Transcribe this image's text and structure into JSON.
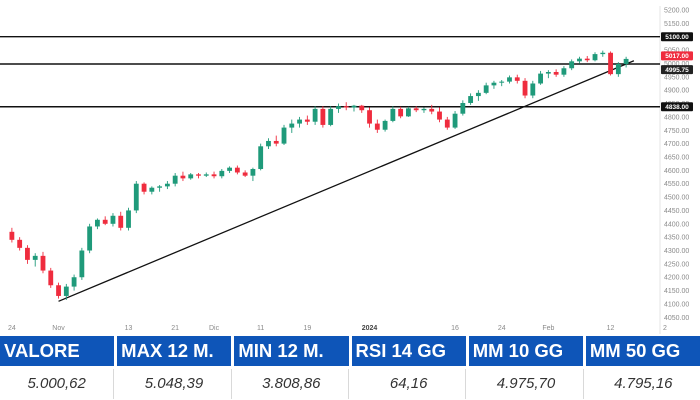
{
  "chart_data": {
    "type": "candlestick",
    "y_axis": {
      "position": "right",
      "ticks": [
        "5200.00",
        "5150.00",
        "5100.00",
        "5050.00",
        "5000.00",
        "4950.00",
        "4900.00",
        "4850.00",
        "4800.00",
        "4750.00",
        "4700.00",
        "4650.00",
        "4600.00",
        "4550.00",
        "4500.00",
        "4450.00",
        "4400.00",
        "4350.00",
        "4300.00",
        "4250.00",
        "4200.00",
        "4150.00",
        "4100.00",
        "4050.00"
      ],
      "ylim": [
        4040,
        5215
      ]
    },
    "x_axis": {
      "ticks": [
        {
          "label": "24",
          "i": 0
        },
        {
          "label": "Nov",
          "i": 6
        },
        {
          "label": "13",
          "i": 15
        },
        {
          "label": "21",
          "i": 21
        },
        {
          "label": "Dic",
          "i": 26
        },
        {
          "label": "11",
          "i": 32
        },
        {
          "label": "19",
          "i": 38
        },
        {
          "label": "2024",
          "i": 46,
          "bold": true
        },
        {
          "label": "16",
          "i": 57
        },
        {
          "label": "24",
          "i": 63
        },
        {
          "label": "Feb",
          "i": 69
        },
        {
          "label": "12",
          "i": 77
        },
        {
          "label": "2",
          "i": 84
        }
      ]
    },
    "horizontal_lines": [
      {
        "value": 5100,
        "label": "5100.00"
      },
      {
        "value": 4998,
        "label": ""
      },
      {
        "value": 4838,
        "label": "4838.00"
      }
    ],
    "price_tags": [
      {
        "text": "5017.00",
        "value": 5017,
        "color": "#ef2c3e"
      },
      {
        "text": "4995.75",
        "value": 4995.75,
        "color": "#222222"
      }
    ],
    "trendline": {
      "from": {
        "i": 6,
        "value": 4110
      },
      "to": {
        "i": 80,
        "value": 5010
      }
    },
    "candles": [
      [
        4370,
        4385,
        4330,
        4340
      ],
      [
        4340,
        4350,
        4300,
        4310
      ],
      [
        4310,
        4320,
        4250,
        4265
      ],
      [
        4265,
        4290,
        4240,
        4280
      ],
      [
        4280,
        4295,
        4215,
        4225
      ],
      [
        4225,
        4235,
        4160,
        4170
      ],
      [
        4170,
        4180,
        4120,
        4130
      ],
      [
        4130,
        4175,
        4115,
        4165
      ],
      [
        4165,
        4210,
        4150,
        4200
      ],
      [
        4200,
        4310,
        4190,
        4300
      ],
      [
        4300,
        4400,
        4290,
        4390
      ],
      [
        4390,
        4420,
        4380,
        4415
      ],
      [
        4415,
        4428,
        4395,
        4400
      ],
      [
        4400,
        4440,
        4390,
        4430
      ],
      [
        4430,
        4445,
        4375,
        4385
      ],
      [
        4385,
        4460,
        4375,
        4450
      ],
      [
        4450,
        4560,
        4440,
        4550
      ],
      [
        4550,
        4555,
        4510,
        4520
      ],
      [
        4520,
        4540,
        4510,
        4535
      ],
      [
        4535,
        4545,
        4520,
        4540
      ],
      [
        4540,
        4560,
        4530,
        4550
      ],
      [
        4550,
        4590,
        4540,
        4580
      ],
      [
        4580,
        4595,
        4560,
        4570
      ],
      [
        4570,
        4590,
        4565,
        4585
      ],
      [
        4585,
        4590,
        4570,
        4580
      ],
      [
        4580,
        4592,
        4575,
        4585
      ],
      [
        4585,
        4595,
        4570,
        4578
      ],
      [
        4578,
        4605,
        4570,
        4598
      ],
      [
        4598,
        4615,
        4590,
        4610
      ],
      [
        4610,
        4618,
        4585,
        4592
      ],
      [
        4592,
        4600,
        4575,
        4580
      ],
      [
        4580,
        4610,
        4560,
        4605
      ],
      [
        4605,
        4700,
        4600,
        4690
      ],
      [
        4690,
        4720,
        4680,
        4710
      ],
      [
        4710,
        4730,
        4690,
        4700
      ],
      [
        4700,
        4770,
        4695,
        4760
      ],
      [
        4760,
        4790,
        4740,
        4775
      ],
      [
        4775,
        4800,
        4760,
        4790
      ],
      [
        4790,
        4805,
        4770,
        4782
      ],
      [
        4782,
        4840,
        4770,
        4830
      ],
      [
        4830,
        4840,
        4760,
        4770
      ],
      [
        4770,
        4840,
        4765,
        4830
      ],
      [
        4830,
        4850,
        4815,
        4840
      ],
      [
        4840,
        4855,
        4825,
        4835
      ],
      [
        4835,
        4845,
        4820,
        4842
      ],
      [
        4842,
        4845,
        4815,
        4825
      ],
      [
        4825,
        4835,
        4760,
        4775
      ],
      [
        4775,
        4790,
        4740,
        4752
      ],
      [
        4752,
        4790,
        4745,
        4785
      ],
      [
        4785,
        4840,
        4780,
        4830
      ],
      [
        4830,
        4838,
        4795,
        4802
      ],
      [
        4802,
        4838,
        4800,
        4832
      ],
      [
        4832,
        4840,
        4818,
        4825
      ],
      [
        4825,
        4835,
        4815,
        4830
      ],
      [
        4830,
        4845,
        4810,
        4820
      ],
      [
        4820,
        4835,
        4780,
        4790
      ],
      [
        4790,
        4800,
        4752,
        4760
      ],
      [
        4760,
        4822,
        4755,
        4812
      ],
      [
        4812,
        4862,
        4805,
        4852
      ],
      [
        4852,
        4888,
        4845,
        4878
      ],
      [
        4878,
        4900,
        4860,
        4890
      ],
      [
        4890,
        4928,
        4885,
        4918
      ],
      [
        4918,
        4935,
        4905,
        4928
      ],
      [
        4928,
        4938,
        4915,
        4932
      ],
      [
        4932,
        4955,
        4925,
        4948
      ],
      [
        4948,
        4958,
        4925,
        4935
      ],
      [
        4935,
        4945,
        4870,
        4880
      ],
      [
        4880,
        4935,
        4870,
        4925
      ],
      [
        4925,
        4972,
        4920,
        4962
      ],
      [
        4962,
        4975,
        4945,
        4968
      ],
      [
        4968,
        4978,
        4950,
        4958
      ],
      [
        4958,
        4990,
        4950,
        4982
      ],
      [
        4982,
        5015,
        4975,
        5008
      ],
      [
        5008,
        5025,
        5000,
        5018
      ],
      [
        5018,
        5028,
        5005,
        5012
      ],
      [
        5012,
        5042,
        5008,
        5035
      ],
      [
        5035,
        5048,
        5025,
        5040
      ],
      [
        5040,
        5045,
        4955,
        4960
      ],
      [
        4960,
        5005,
        4950,
        4998
      ],
      [
        4998,
        5025,
        4985,
        5017
      ]
    ]
  },
  "stats": {
    "headers": [
      "VALORE",
      "MAX 12 M.",
      "MIN 12 M.",
      "RSI 14 GG",
      "MM 10 GG",
      "MM 50 GG"
    ],
    "values": [
      "5.000,62",
      "5.048,39",
      "3.808,86",
      "64,16",
      "4.975,70",
      "4.795,16"
    ]
  },
  "colors": {
    "up": "#1f9a7a",
    "down": "#ef2c3e",
    "header_bg": "#0e55b8"
  }
}
